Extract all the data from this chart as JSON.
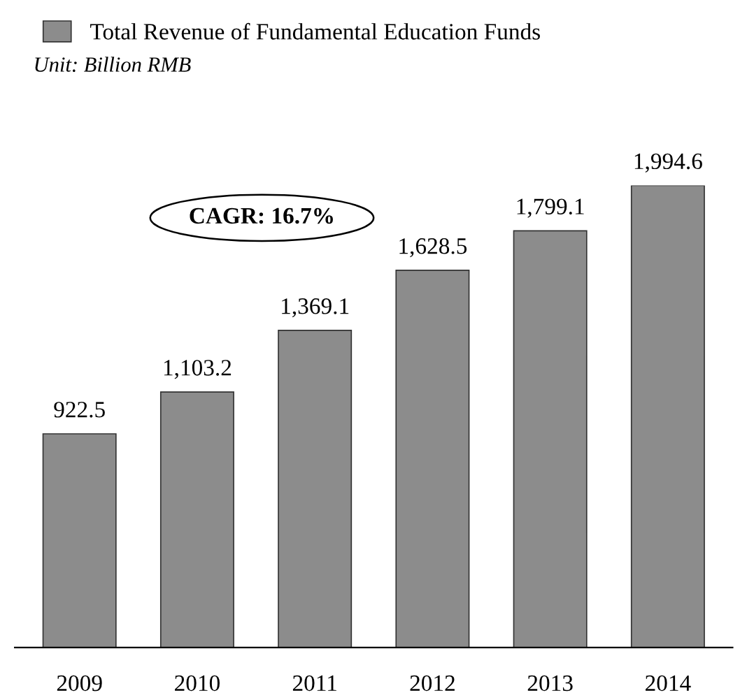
{
  "chart_data": {
    "type": "bar",
    "categories": [
      "2009",
      "2010",
      "2011",
      "2012",
      "2013",
      "2014"
    ],
    "series": [
      {
        "name": "Total Revenue of Fundamental Education Funds",
        "color": "#8c8c8c",
        "values": [
          922.5,
          1103.2,
          1369.1,
          1628.5,
          1799.1,
          1994.6
        ],
        "value_labels": [
          "922.5",
          "1,103.2",
          "1,369.1",
          "1,628.5",
          "1,799.1",
          "1,994.6"
        ]
      }
    ],
    "annotations": [
      "Unit: Billion RMB",
      "CAGR: 16.7%"
    ],
    "legend": "top left",
    "grid": false
  }
}
